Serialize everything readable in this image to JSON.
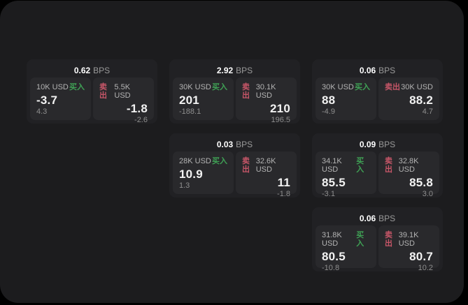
{
  "colors": {
    "page": "#000000",
    "panel": "#1c1c1e",
    "card": "#212124",
    "tile": "#29292c",
    "buy": "#3fa155",
    "sell": "#c75668",
    "price_text": "#f2f2f2",
    "amount_text": "#b3b3b3",
    "muted_text": "#8f8f8f",
    "bps_unit": "#9a9a9a"
  },
  "cards": [
    {
      "bps_value": "0.62",
      "bps_label": "BPS",
      "buy": {
        "amount": "10K USD",
        "side_label": "买入",
        "price": "-3.7",
        "delta": "4.3"
      },
      "sell": {
        "amount": "5.5K USD",
        "side_label": "卖出",
        "price": "-1.8",
        "delta": "-2.6"
      }
    },
    {
      "bps_value": "2.92",
      "bps_label": "BPS",
      "buy": {
        "amount": "30K USD",
        "side_label": "买入",
        "price": "201",
        "delta": "-188.1"
      },
      "sell": {
        "amount": "30.1K USD",
        "side_label": "卖出",
        "price": "210",
        "delta": "196.5"
      }
    },
    {
      "bps_value": "0.06",
      "bps_label": "BPS",
      "buy": {
        "amount": "30K USD",
        "side_label": "买入",
        "price": "88",
        "delta": "-4.9"
      },
      "sell": {
        "amount": "30K USD",
        "side_label": "卖出",
        "price": "88.2",
        "delta": "4.7"
      }
    },
    {
      "bps_value": "0.03",
      "bps_label": "BPS",
      "buy": {
        "amount": "28K USD",
        "side_label": "买入",
        "price": "10.9",
        "delta": "1.3"
      },
      "sell": {
        "amount": "32.6K USD",
        "side_label": "卖出",
        "price": "11",
        "delta": "-1.8"
      }
    },
    {
      "bps_value": "0.09",
      "bps_label": "BPS",
      "buy": {
        "amount": "34.1K USD",
        "side_label": "买入",
        "price": "85.5",
        "delta": "-3.1"
      },
      "sell": {
        "amount": "32.8K USD",
        "side_label": "卖出",
        "price": "85.8",
        "delta": "3.0"
      }
    },
    {
      "bps_value": "0.06",
      "bps_label": "BPS",
      "buy": {
        "amount": "31.8K USD",
        "side_label": "买入",
        "price": "80.5",
        "delta": "-10.8"
      },
      "sell": {
        "amount": "39.1K USD",
        "side_label": "卖出",
        "price": "80.7",
        "delta": "10.2"
      }
    }
  ]
}
